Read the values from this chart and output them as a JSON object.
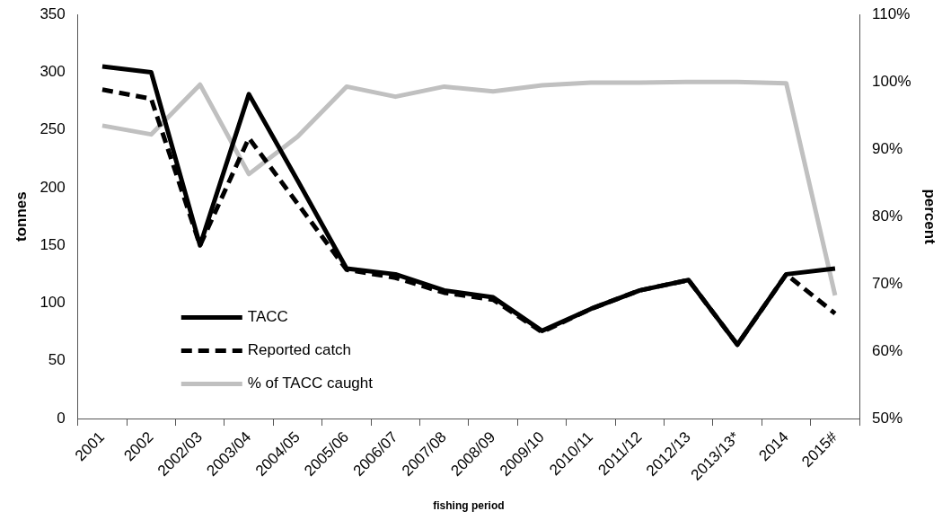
{
  "chart_data": {
    "type": "line",
    "xlabel": "fishing period",
    "ylabel": "tonnes",
    "y2label": "percent",
    "categories": [
      "2001",
      "2002",
      "2002/03",
      "2003/04",
      "2004/05",
      "2005/06",
      "2006/07",
      "2007/08",
      "2008/09",
      "2009/10",
      "2010/11",
      "2011/12",
      "2012/13",
      "2013/13*",
      "2014",
      "2015#"
    ],
    "series": [
      {
        "name": "TACC",
        "color": "#000000",
        "line_style": "solid",
        "values": [
          305,
          300,
          150,
          281,
          206,
          130,
          125,
          111,
          105,
          76,
          95,
          111,
          120,
          64,
          125,
          130
        ]
      },
      {
        "name": "Reported catch",
        "color": "#000000",
        "line_style": "dashed",
        "values": [
          285,
          277,
          150,
          243,
          186,
          129,
          122,
          109,
          103,
          75,
          95,
          111,
          120,
          64,
          125,
          91
        ]
      },
      {
        "name": "% of TACC caught",
        "color": "#c0c0c0",
        "line_style": "solid",
        "axis": "y2",
        "values": [
          93.5,
          92.2,
          99.6,
          86.3,
          91.9,
          99.3,
          97.8,
          99.3,
          98.6,
          99.5,
          99.9,
          99.9,
          100,
          100,
          99.8,
          68.3
        ]
      }
    ],
    "ylim": [
      0,
      350
    ],
    "yticks": [
      0,
      50,
      100,
      150,
      200,
      250,
      300,
      350
    ],
    "y2lim": [
      50,
      110
    ],
    "y2ticks": [
      {
        "value": 50,
        "label": "50%"
      },
      {
        "value": 60,
        "label": "60%"
      },
      {
        "value": 70,
        "label": "70%"
      },
      {
        "value": 80,
        "label": "80%"
      },
      {
        "value": 90,
        "label": "90%"
      },
      {
        "value": 100,
        "label": "100%"
      },
      {
        "value": 110,
        "label": "110%"
      }
    ],
    "grid": false,
    "legend": "bottom left",
    "marker": "none"
  }
}
